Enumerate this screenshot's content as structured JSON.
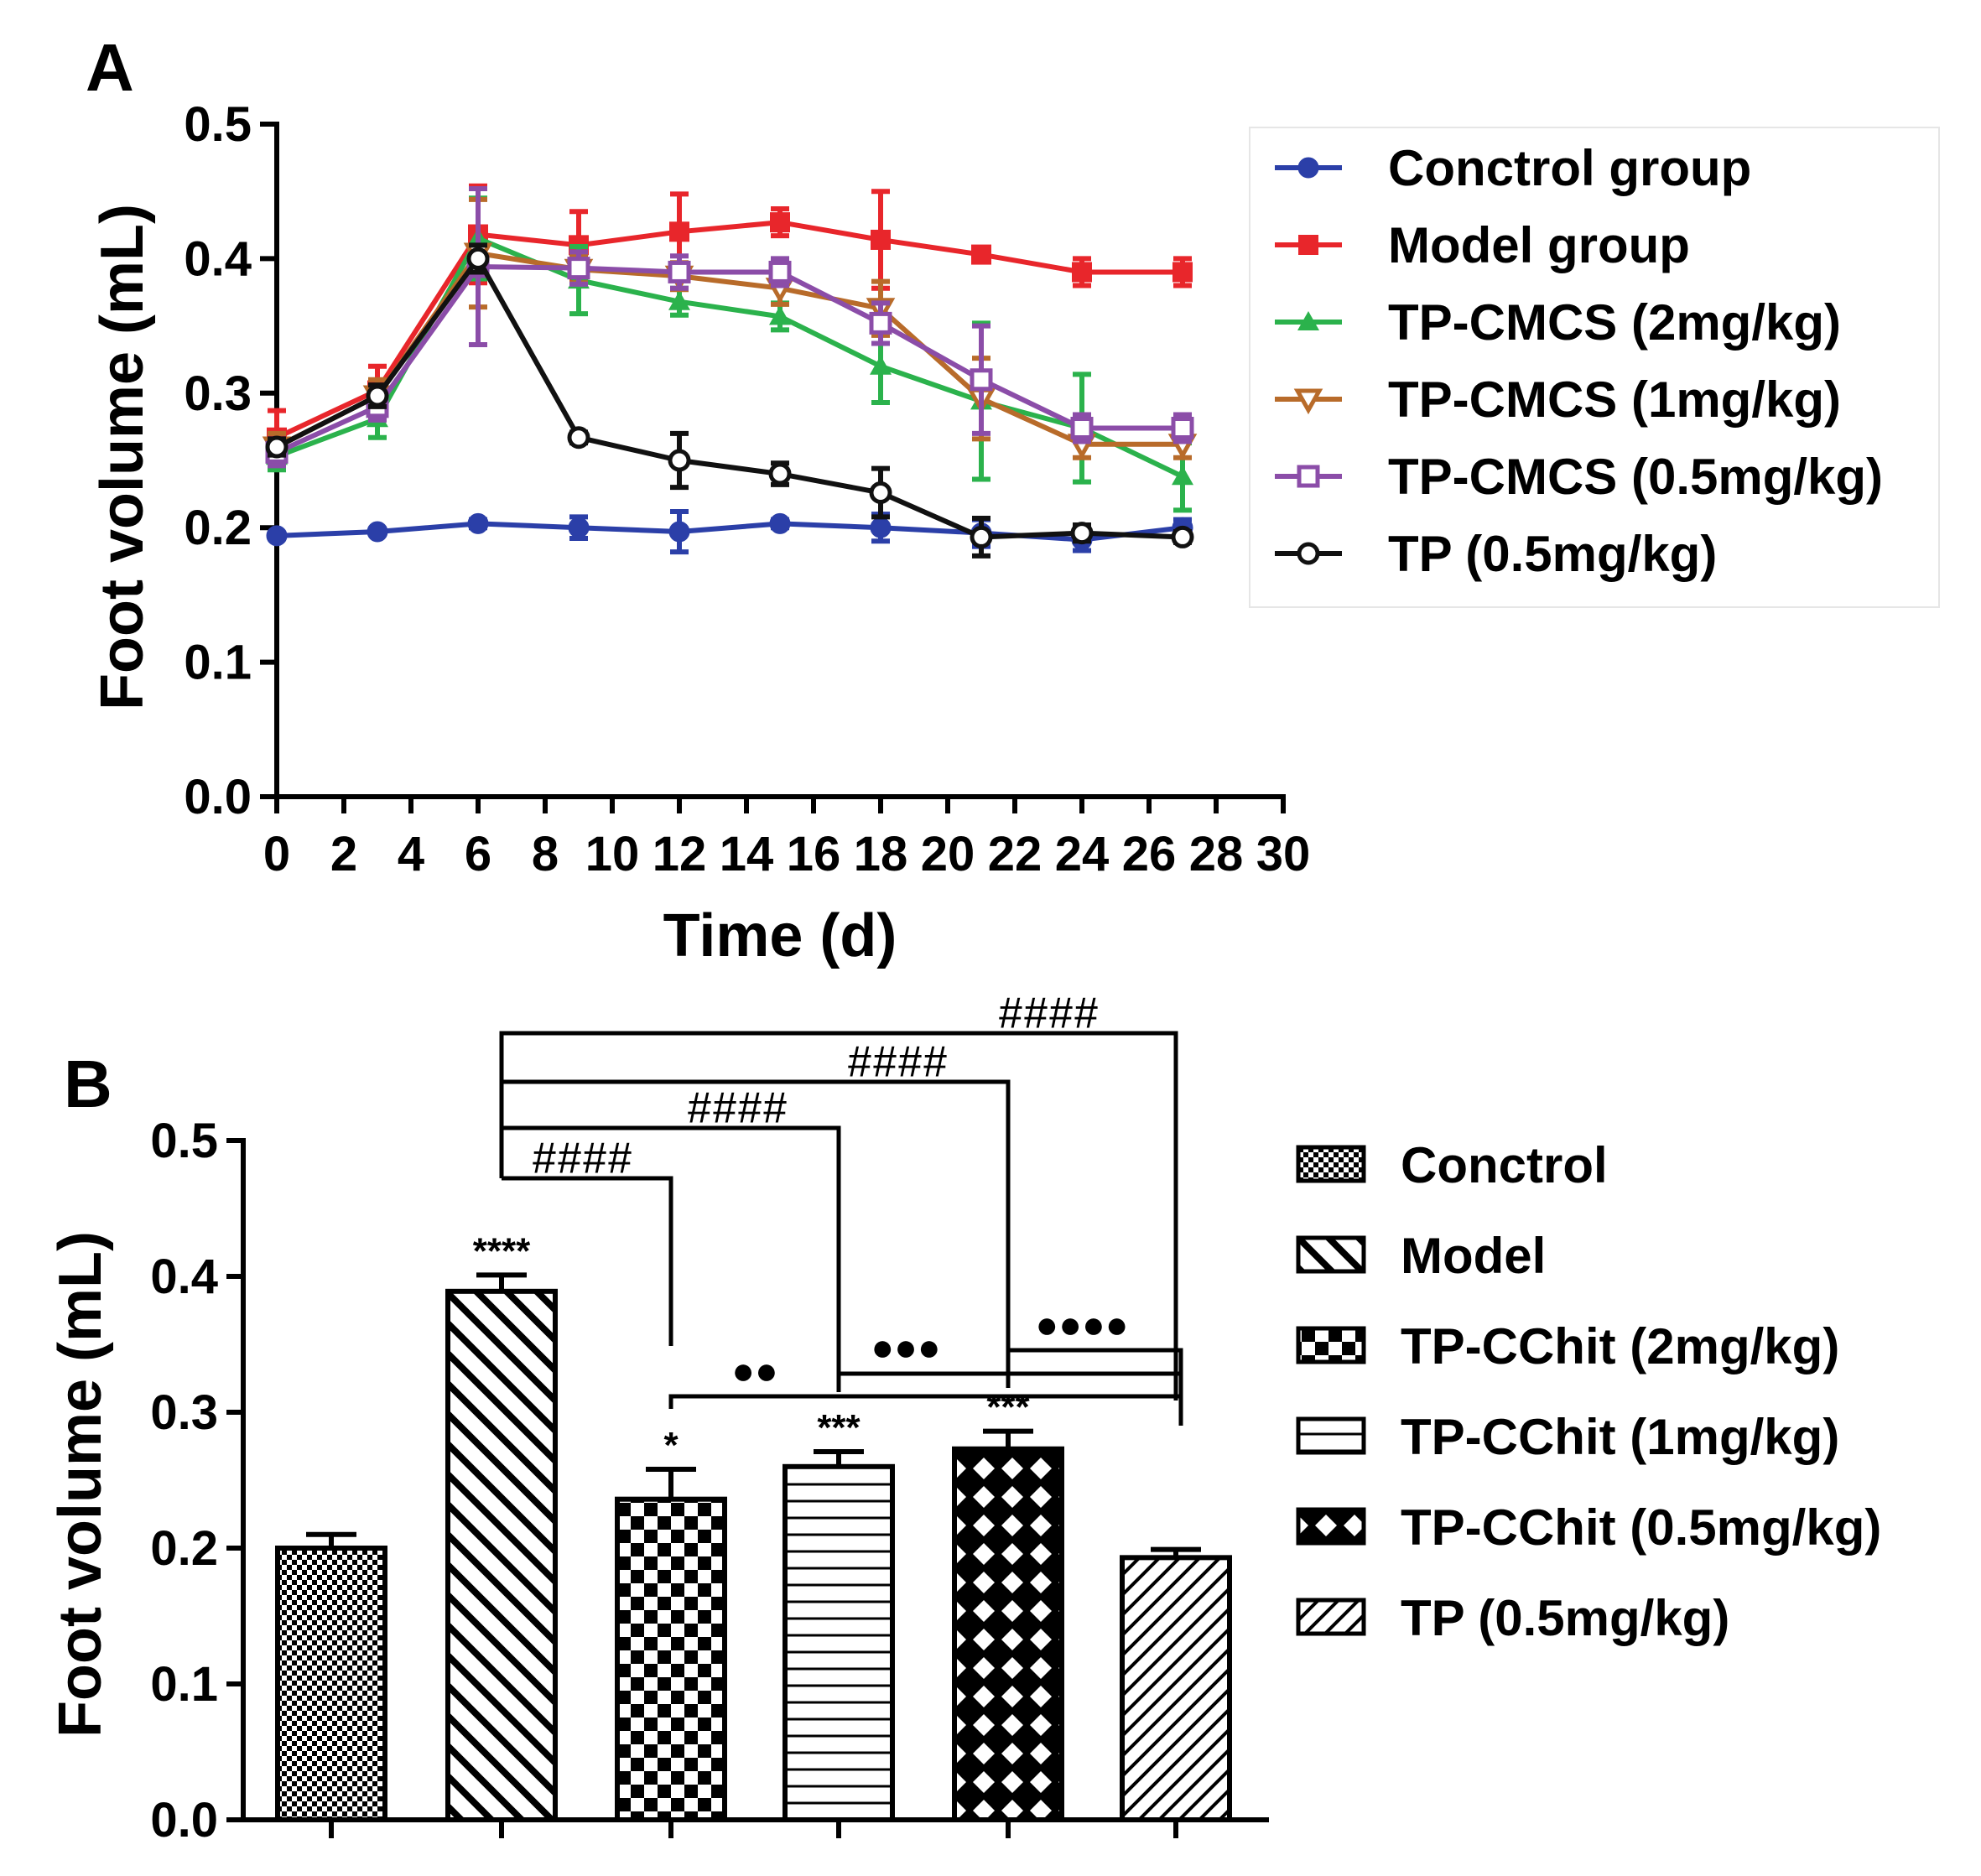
{
  "chart_data": [
    {
      "panel": "A",
      "type": "line",
      "xlabel": "Time (d)",
      "ylabel": "Foot volume (mL)",
      "xlim": [
        0,
        30
      ],
      "ylim": [
        0,
        0.5
      ],
      "xticks": [
        "0",
        "2",
        "4",
        "6",
        "8",
        "10",
        "12",
        "14",
        "16",
        "18",
        "20",
        "22",
        "24",
        "26",
        "28",
        "30"
      ],
      "yticks": [
        "0.0",
        "0.1",
        "0.2",
        "0.3",
        "0.4",
        "0.5"
      ],
      "legend_position": "right",
      "x": [
        0,
        3,
        6,
        9,
        12,
        15,
        18,
        21,
        24,
        27
      ],
      "series": [
        {
          "name": "Conctrol group",
          "color": "#2b3fa8",
          "marker": "circle-filled",
          "values": [
            0.194,
            0.197,
            0.203,
            0.2,
            0.197,
            0.203,
            0.2,
            0.196,
            0.191,
            0.2
          ],
          "errors": [
            0.002,
            0.002,
            0.003,
            0.008,
            0.015,
            0.003,
            0.01,
            0.01,
            0.008,
            0.006
          ]
        },
        {
          "name": "Model group",
          "color": "#e8262b",
          "marker": "square-filled",
          "values": [
            0.267,
            0.302,
            0.418,
            0.41,
            0.42,
            0.427,
            0.414,
            0.403,
            0.39,
            0.39
          ],
          "errors": [
            0.02,
            0.018,
            0.036,
            0.025,
            0.028,
            0.01,
            0.036,
            0.005,
            0.01,
            0.01
          ]
        },
        {
          "name": "TP-CMCS (2mg/kg)",
          "color": "#2bb24c",
          "marker": "triangle-up-filled",
          "values": [
            0.253,
            0.281,
            0.415,
            0.384,
            0.368,
            0.357,
            0.32,
            0.294,
            0.274,
            0.238
          ],
          "errors": [
            0.01,
            0.014,
            0.03,
            0.025,
            0.01,
            0.01,
            0.027,
            0.058,
            0.04,
            0.025
          ]
        },
        {
          "name": "TP-CMCS (1mg/kg)",
          "color": "#b86b2a",
          "marker": "triangle-down-open",
          "values": [
            0.26,
            0.298,
            0.404,
            0.392,
            0.387,
            0.378,
            0.363,
            0.296,
            0.262,
            0.262
          ],
          "errors": [
            0.01,
            0.012,
            0.04,
            0.01,
            0.01,
            0.012,
            0.02,
            0.03,
            0.01,
            0.01
          ]
        },
        {
          "name": "TP-CMCS (0.5mg/kg)",
          "color": "#8b4da8",
          "marker": "square-open",
          "values": [
            0.256,
            0.29,
            0.394,
            0.393,
            0.39,
            0.39,
            0.352,
            0.31,
            0.274,
            0.274
          ],
          "errors": [
            0.01,
            0.01,
            0.058,
            0.012,
            0.012,
            0.01,
            0.015,
            0.04,
            0.01,
            0.01
          ]
        },
        {
          "name": "TP (0.5mg/kg)",
          "color": "#111111",
          "marker": "circle-open",
          "values": [
            0.26,
            0.298,
            0.4,
            0.267,
            0.25,
            0.24,
            0.226,
            0.193,
            0.196,
            0.193
          ],
          "errors": [
            0.006,
            0.008,
            0.01,
            0.004,
            0.02,
            0.008,
            0.018,
            0.014,
            0.006,
            0.004
          ]
        }
      ]
    },
    {
      "panel": "B",
      "type": "bar",
      "ylabel": "Foot volume (mL)",
      "ylim": [
        0,
        0.5
      ],
      "yticks": [
        "0.0",
        "0.1",
        "0.2",
        "0.3",
        "0.4",
        "0.5"
      ],
      "legend_position": "right",
      "categories": [
        "Conctrol",
        "Model",
        "TP-CChit (2mg/kg)",
        "TP-CChit (1mg/kg)",
        "TP-CChit (0.5mg/kg)",
        "TP (0.5mg/kg)"
      ],
      "values": [
        0.2,
        0.389,
        0.236,
        0.26,
        0.273,
        0.193
      ],
      "errors": [
        0.01,
        0.012,
        0.022,
        0.011,
        0.013,
        0.006
      ],
      "patterns": [
        "grid",
        "diag-back",
        "checker",
        "horizontal",
        "diamond",
        "diag-fwd"
      ],
      "star_annotations": [
        "",
        "****",
        "*",
        "***",
        "***",
        ""
      ],
      "hash_label": "####",
      "dot_labels": [
        "●●",
        "●●●",
        "●●●●"
      ]
    }
  ]
}
